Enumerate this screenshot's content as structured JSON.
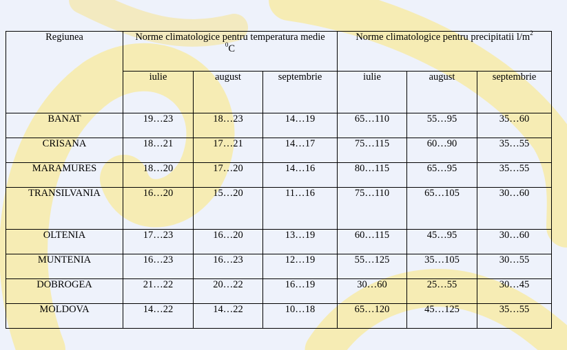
{
  "table": {
    "header": {
      "region": "Regiunea",
      "temp_group": "Norme climatologice pentru temperatura medie",
      "temp_unit_sup": "0",
      "temp_unit": "C",
      "precip_group": "Norme climatologice pentru precipitatii l/m",
      "precip_unit_sup": "2"
    },
    "months": [
      "iulie",
      "august",
      "septembrie",
      "iulie",
      "august",
      "septembrie"
    ],
    "rows": [
      {
        "region": "BANAT",
        "values": [
          "19…23",
          "18…23",
          "14…19",
          "65…110",
          "55…95",
          "35…60"
        ]
      },
      {
        "region": "CRISANA",
        "values": [
          "18…21",
          "17…21",
          "14…17",
          "75…115",
          "60…90",
          "35…55"
        ]
      },
      {
        "region": "MARAMURES",
        "values": [
          "18…20",
          "17…20",
          "14…16",
          "80…115",
          "65…95",
          "35…55"
        ]
      },
      {
        "region": "TRANSILVANIA",
        "values": [
          "16…20",
          "15…20",
          "11…16",
          "75…110",
          "65…105",
          "30…60"
        ]
      },
      {
        "region": "OLTENIA",
        "values": [
          "17…23",
          "16…20",
          "13…19",
          "60…115",
          "45…95",
          "30…60"
        ]
      },
      {
        "region": "MUNTENIA",
        "values": [
          "16…23",
          "16…23",
          "12…19",
          "55…125",
          "35…105",
          "30…55"
        ]
      },
      {
        "region": "DOBROGEA",
        "values": [
          "21…22",
          "20…22",
          "16…19",
          "30…60",
          "25…55",
          "30…45"
        ]
      },
      {
        "region": "MOLDOVA",
        "values": [
          "14…22",
          "14…22",
          "10…18",
          "65…120",
          "45…125",
          "35…55"
        ]
      }
    ]
  }
}
